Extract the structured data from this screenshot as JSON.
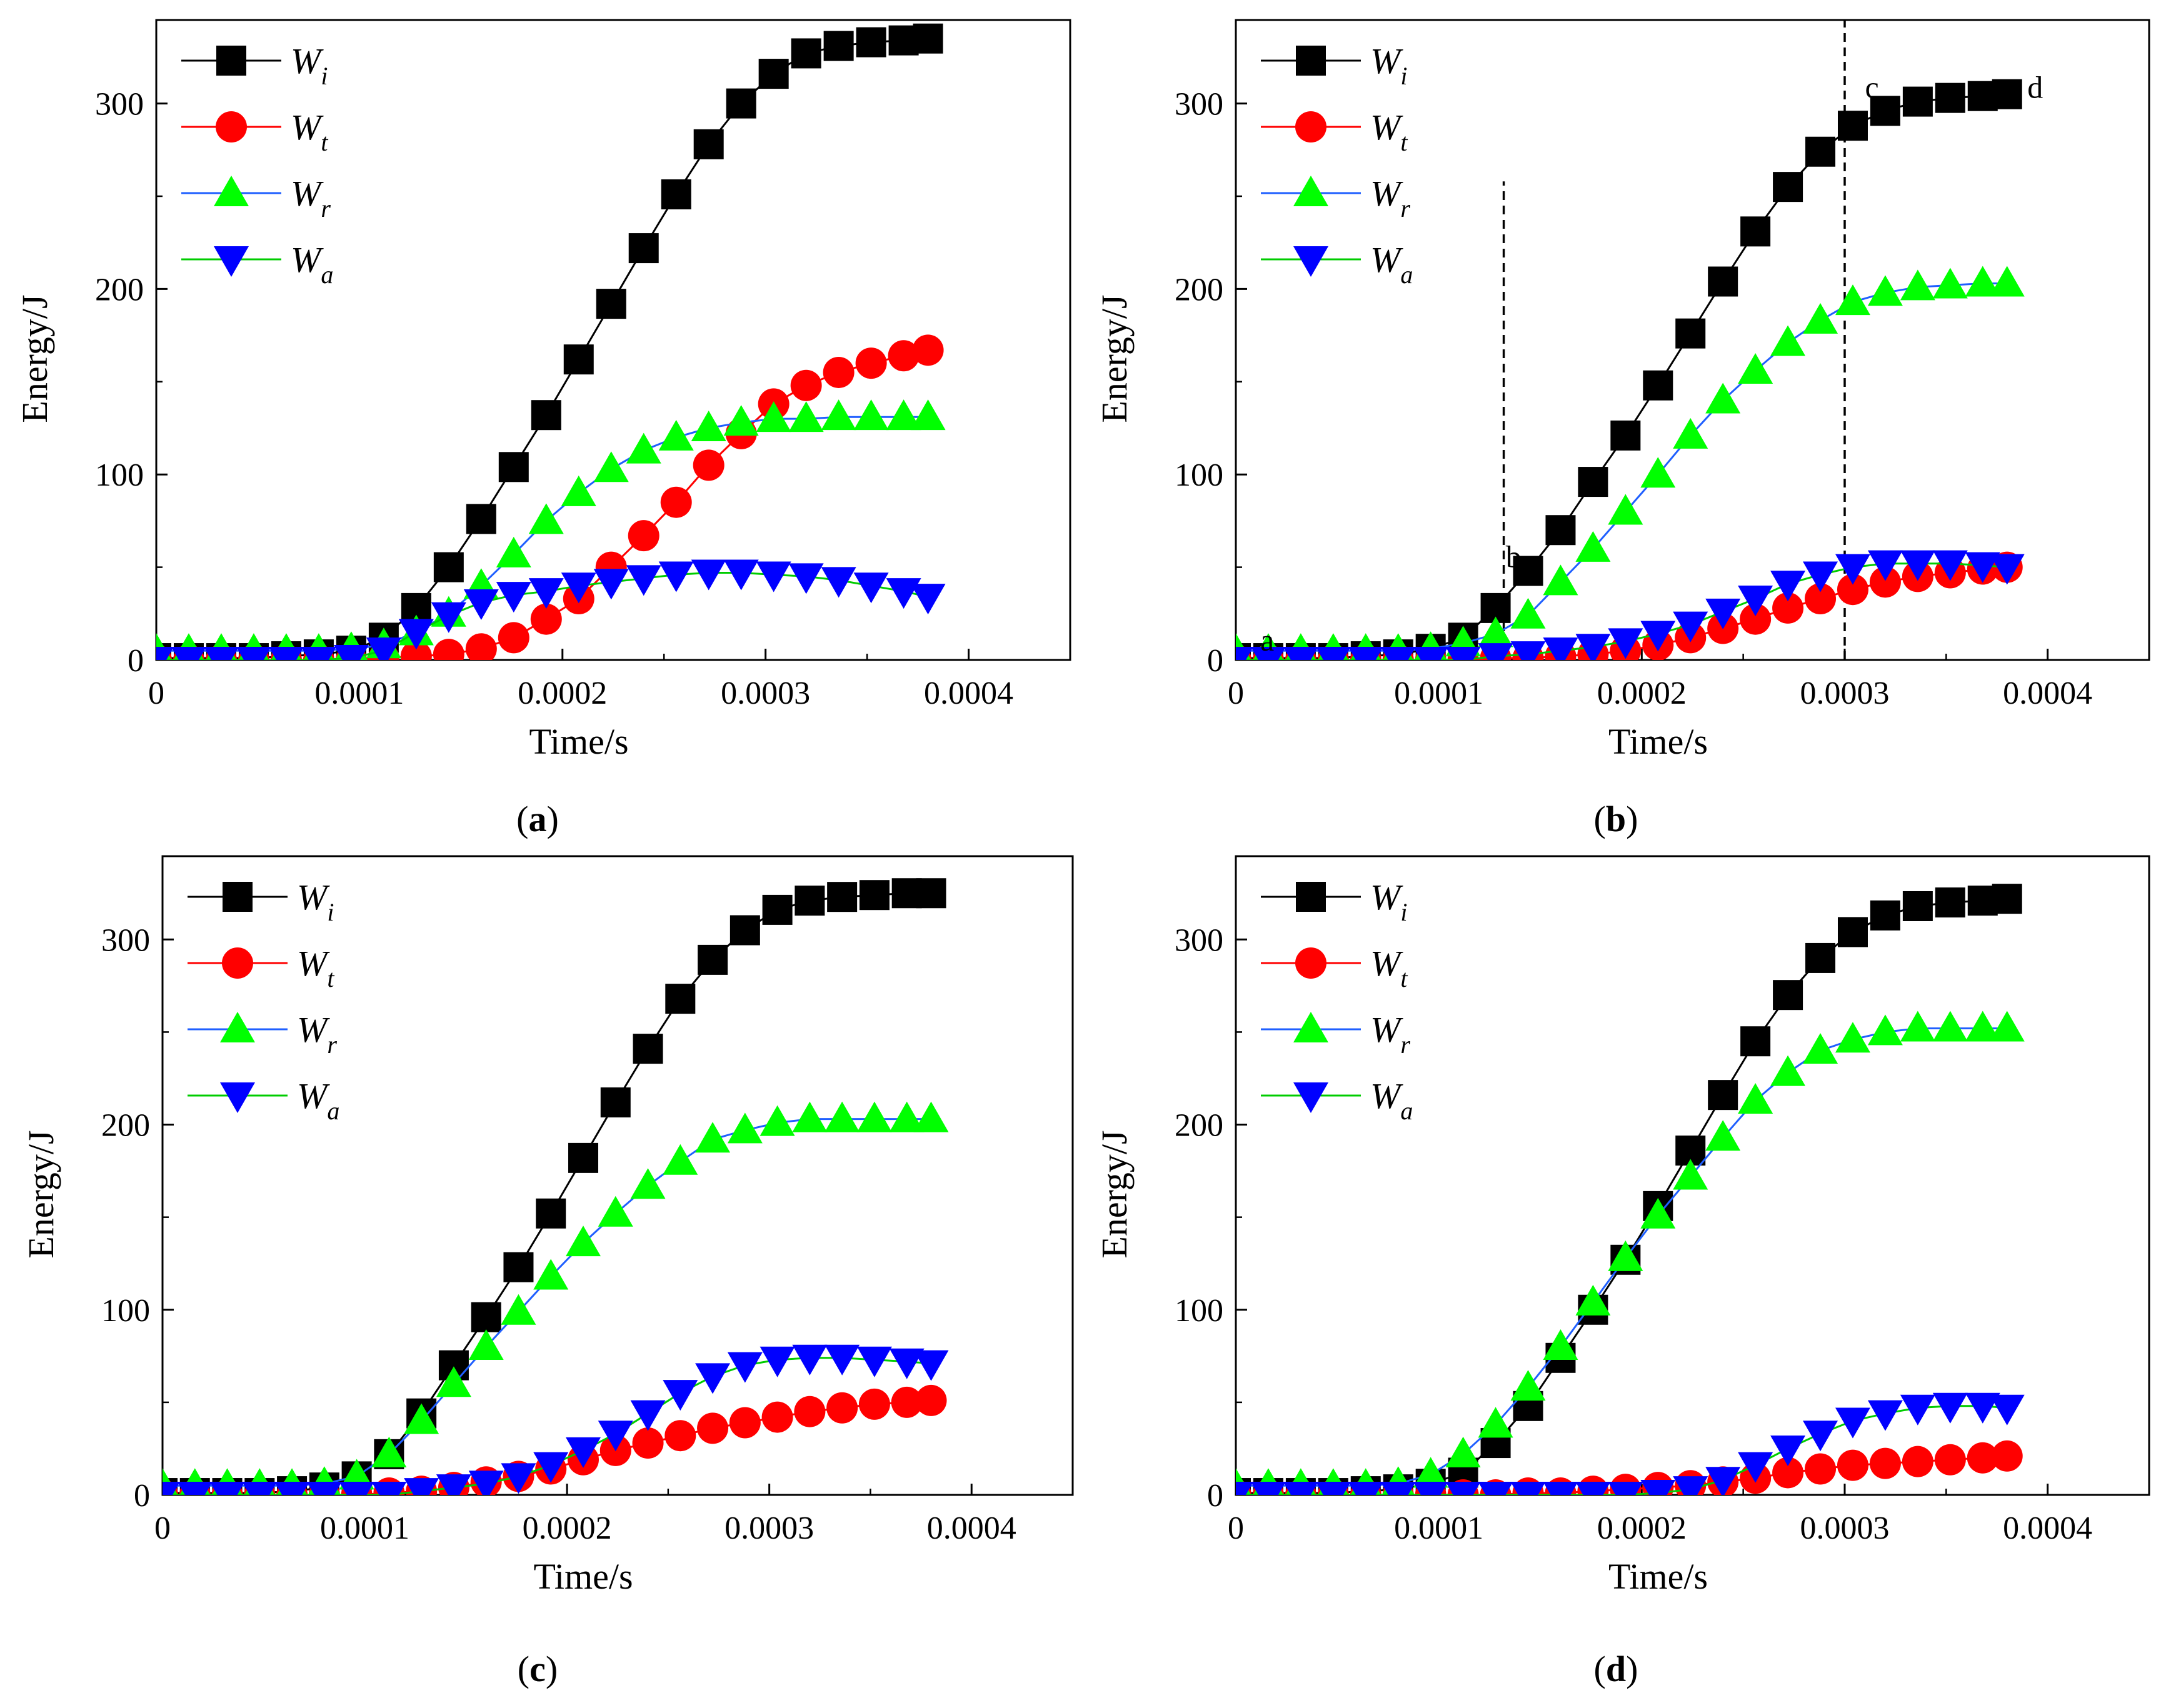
{
  "chart_data": [
    {
      "type": "line",
      "panel": "a",
      "caption_label": "a",
      "xlabel": "Time/s",
      "ylabel": "Energy/J",
      "xlim": [
        0,
        0.00045
      ],
      "ylim": [
        0,
        345
      ],
      "xticks": [
        0,
        0.0001,
        0.0002,
        0.0003,
        0.0004
      ],
      "xtick_labels": [
        "0",
        "0.0001",
        "0.0002",
        "0.0003",
        "0.0004"
      ],
      "yticks": [
        0,
        100,
        200,
        300
      ],
      "ytick_labels": [
        "0",
        "100",
        "200",
        "300"
      ],
      "legend_position": "top-left",
      "x": [
        0,
        1.6e-05,
        3.2e-05,
        4.8e-05,
        6.4e-05,
        8e-05,
        9.6e-05,
        0.000112,
        0.000128,
        0.000144,
        0.00016,
        0.000176,
        0.000192,
        0.000208,
        0.000224,
        0.00024,
        0.000256,
        0.000272,
        0.000288,
        0.000304,
        0.00032,
        0.000336,
        0.000352,
        0.000368,
        0.00038
      ],
      "series": [
        {
          "name": "W",
          "sub": "i",
          "marker": "square",
          "color": "#000000",
          "line_color": "#000000",
          "values": [
            1,
            1,
            1,
            1,
            2,
            3,
            5,
            12,
            28,
            50,
            76,
            104,
            132,
            162,
            192,
            222,
            251,
            278,
            300,
            316,
            327,
            331,
            333,
            334,
            335
          ]
        },
        {
          "name": "W",
          "sub": "t",
          "marker": "circle",
          "color": "#ff0000",
          "line_color": "#ff0000",
          "values": [
            0,
            0,
            0,
            0,
            0,
            0,
            0,
            1,
            2,
            3,
            6,
            12,
            22,
            33,
            50,
            67,
            85,
            105,
            122,
            138,
            148,
            155,
            160,
            164,
            167
          ]
        },
        {
          "name": "W",
          "sub": "r",
          "marker": "triangle-up",
          "color": "#00ff00",
          "line_color": "#1f5fff",
          "values": [
            5,
            5,
            5,
            5,
            5,
            5,
            6,
            8,
            15,
            25,
            40,
            57,
            75,
            90,
            103,
            113,
            120,
            125,
            128,
            130,
            130,
            131,
            131,
            131,
            131
          ]
        },
        {
          "name": "W",
          "sub": "a",
          "marker": "triangle-down",
          "color": "#0000ff",
          "line_color": "#00cc00",
          "values": [
            0,
            0,
            0,
            0,
            0,
            0,
            1,
            5,
            15,
            24,
            31,
            35,
            37,
            40,
            42,
            44,
            46,
            47,
            47,
            46,
            45,
            43,
            40,
            37,
            34
          ]
        }
      ]
    },
    {
      "type": "line",
      "panel": "b",
      "caption_label": "b",
      "xlabel": "Time/s",
      "ylabel": "Energy/J",
      "xlim": [
        0,
        0.00045
      ],
      "ylim": [
        0,
        345
      ],
      "xticks": [
        0,
        0.0001,
        0.0002,
        0.0003,
        0.0004
      ],
      "xtick_labels": [
        "0",
        "0.0001",
        "0.0002",
        "0.0003",
        "0.0004"
      ],
      "yticks": [
        0,
        100,
        200,
        300
      ],
      "ytick_labels": [
        "0",
        "100",
        "200",
        "300"
      ],
      "legend_position": "top-left",
      "annotations": [
        {
          "text": "a",
          "x": 1.2e-05,
          "y": 5
        },
        {
          "text": "b",
          "x": 0.000133,
          "y": 50
        },
        {
          "text": "c",
          "x": 0.00031,
          "y": 303
        },
        {
          "text": "d",
          "x": 0.00039,
          "y": 303
        }
      ],
      "vlines": [
        {
          "x": 0.000132,
          "y_top": 258
        },
        {
          "x": 0.0003,
          "y_top": 345
        }
      ],
      "x": [
        0,
        1.6e-05,
        3.2e-05,
        4.8e-05,
        6.4e-05,
        8e-05,
        9.6e-05,
        0.000112,
        0.000128,
        0.000144,
        0.00016,
        0.000176,
        0.000192,
        0.000208,
        0.000224,
        0.00024,
        0.000256,
        0.000272,
        0.000288,
        0.000304,
        0.00032,
        0.000336,
        0.000352,
        0.000368,
        0.00038
      ],
      "series": [
        {
          "name": "W",
          "sub": "i",
          "marker": "square",
          "color": "#000000",
          "line_color": "#000000",
          "values": [
            1,
            1,
            1,
            1,
            2,
            3,
            6,
            12,
            28,
            48,
            70,
            96,
            121,
            148,
            176,
            204,
            231,
            255,
            274,
            288,
            296,
            301,
            303,
            304,
            305
          ]
        },
        {
          "name": "W",
          "sub": "t",
          "marker": "circle",
          "color": "#ff0000",
          "line_color": "#ff0000",
          "values": [
            0,
            0,
            0,
            0,
            0,
            0,
            0,
            0,
            1,
            1,
            2,
            3,
            5,
            8,
            12,
            17,
            22,
            28,
            33,
            38,
            42,
            45,
            47,
            49,
            50
          ]
        },
        {
          "name": "W",
          "sub": "r",
          "marker": "triangle-up",
          "color": "#00ff00",
          "line_color": "#1f5fff",
          "values": [
            5,
            5,
            5,
            5,
            5,
            5,
            6,
            9,
            14,
            24,
            42,
            60,
            80,
            100,
            121,
            140,
            156,
            171,
            183,
            193,
            198,
            201,
            202,
            203,
            203
          ]
        },
        {
          "name": "W",
          "sub": "a",
          "marker": "triangle-down",
          "color": "#0000ff",
          "line_color": "#00cc00",
          "values": [
            0,
            0,
            0,
            0,
            0,
            0,
            0,
            0,
            2,
            3,
            5,
            7,
            10,
            14,
            19,
            26,
            33,
            41,
            46,
            50,
            52,
            52,
            52,
            51,
            50
          ]
        }
      ]
    },
    {
      "type": "line",
      "panel": "c",
      "caption_label": "c",
      "xlabel": "Time/s",
      "ylabel": "Energy/J",
      "xlim": [
        0,
        0.00045
      ],
      "ylim": [
        0,
        345
      ],
      "xticks": [
        0,
        0.0001,
        0.0002,
        0.0003,
        0.0004
      ],
      "xtick_labels": [
        "0",
        "0.0001",
        "0.0002",
        "0.0003",
        "0.0004"
      ],
      "yticks": [
        0,
        100,
        200,
        300
      ],
      "ytick_labels": [
        "0",
        "100",
        "200",
        "300"
      ],
      "legend_position": "top-left",
      "x": [
        0,
        1.6e-05,
        3.2e-05,
        4.8e-05,
        6.4e-05,
        8e-05,
        9.6e-05,
        0.000112,
        0.000128,
        0.000144,
        0.00016,
        0.000176,
        0.000192,
        0.000208,
        0.000224,
        0.00024,
        0.000256,
        0.000272,
        0.000288,
        0.000304,
        0.00032,
        0.000336,
        0.000352,
        0.000368,
        0.00038
      ],
      "series": [
        {
          "name": "W",
          "sub": "i",
          "marker": "square",
          "color": "#000000",
          "line_color": "#000000",
          "values": [
            1,
            1,
            1,
            1,
            2,
            4,
            10,
            22,
            44,
            70,
            96,
            123,
            152,
            182,
            212,
            241,
            268,
            289,
            305,
            316,
            321,
            323,
            324,
            325,
            325
          ]
        },
        {
          "name": "W",
          "sub": "t",
          "marker": "circle",
          "color": "#ff0000",
          "line_color": "#ff0000",
          "values": [
            0,
            0,
            0,
            0,
            0,
            0,
            0,
            1,
            2,
            4,
            7,
            10,
            14,
            19,
            24,
            28,
            32,
            36,
            39,
            42,
            45,
            47,
            49,
            50,
            51
          ]
        },
        {
          "name": "W",
          "sub": "r",
          "marker": "triangle-up",
          "color": "#00ff00",
          "line_color": "#1f5fff",
          "values": [
            5,
            5,
            5,
            5,
            5,
            6,
            10,
            22,
            40,
            60,
            80,
            99,
            118,
            136,
            152,
            167,
            180,
            192,
            197,
            201,
            203,
            203,
            203,
            203,
            203
          ]
        },
        {
          "name": "W",
          "sub": "a",
          "marker": "triangle-down",
          "color": "#0000ff",
          "line_color": "#00cc00",
          "values": [
            0,
            0,
            0,
            0,
            0,
            0,
            0,
            0,
            2,
            4,
            6,
            10,
            16,
            24,
            33,
            44,
            55,
            64,
            70,
            73,
            74,
            74,
            73,
            72,
            71
          ]
        }
      ]
    },
    {
      "type": "line",
      "panel": "d",
      "caption_label": "d",
      "xlabel": "Time/s",
      "ylabel": "Energy/J",
      "xlim": [
        0,
        0.00045
      ],
      "ylim": [
        0,
        345
      ],
      "xticks": [
        0,
        0.0001,
        0.0002,
        0.0003,
        0.0004
      ],
      "xtick_labels": [
        "0",
        "0.0001",
        "0.0002",
        "0.0003",
        "0.0004"
      ],
      "yticks": [
        0,
        100,
        200,
        300
      ],
      "ytick_labels": [
        "0",
        "100",
        "200",
        "300"
      ],
      "legend_position": "top-left",
      "x": [
        0,
        1.6e-05,
        3.2e-05,
        4.8e-05,
        6.4e-05,
        8e-05,
        9.6e-05,
        0.000112,
        0.000128,
        0.000144,
        0.00016,
        0.000176,
        0.000192,
        0.000208,
        0.000224,
        0.00024,
        0.000256,
        0.000272,
        0.000288,
        0.000304,
        0.00032,
        0.000336,
        0.000352,
        0.000368,
        0.00038
      ],
      "series": [
        {
          "name": "W",
          "sub": "i",
          "marker": "square",
          "color": "#000000",
          "line_color": "#000000",
          "values": [
            1,
            1,
            1,
            1,
            2,
            3,
            6,
            12,
            28,
            48,
            74,
            100,
            127,
            156,
            186,
            216,
            245,
            270,
            290,
            304,
            313,
            318,
            320,
            321,
            322
          ]
        },
        {
          "name": "W",
          "sub": "t",
          "marker": "circle",
          "color": "#ff0000",
          "line_color": "#ff0000",
          "values": [
            0,
            0,
            0,
            0,
            0,
            0,
            0,
            0,
            0,
            1,
            1,
            2,
            3,
            4,
            5,
            7,
            9,
            12,
            14,
            16,
            17,
            18,
            19,
            20,
            21
          ]
        },
        {
          "name": "W",
          "sub": "r",
          "marker": "triangle-up",
          "color": "#00ff00",
          "line_color": "#1f5fff",
          "values": [
            5,
            5,
            5,
            5,
            5,
            6,
            11,
            22,
            38,
            58,
            80,
            104,
            128,
            151,
            172,
            193,
            213,
            228,
            240,
            246,
            250,
            252,
            252,
            252,
            252
          ]
        },
        {
          "name": "W",
          "sub": "a",
          "marker": "triangle-down",
          "color": "#0000ff",
          "line_color": "#00cc00",
          "values": [
            0,
            0,
            0,
            0,
            0,
            0,
            0,
            0,
            0,
            0,
            0,
            0,
            0,
            1,
            3,
            8,
            16,
            25,
            33,
            40,
            44,
            47,
            48,
            48,
            47
          ]
        }
      ]
    }
  ]
}
